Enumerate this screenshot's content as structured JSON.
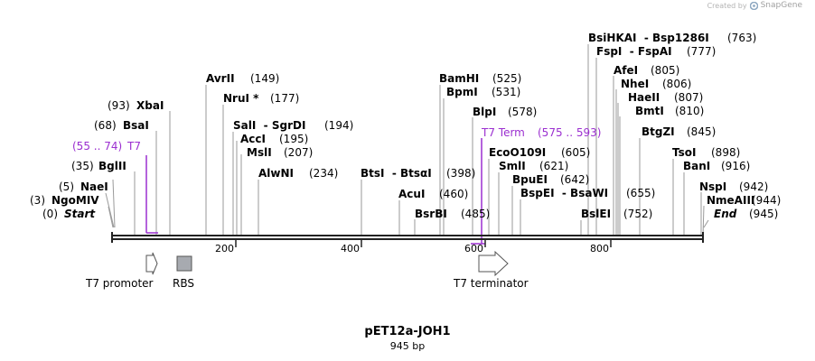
{
  "credit": {
    "prefix": "Created by",
    "brand": "SnapGene"
  },
  "plasmid": {
    "name": "pET12a-JOH1",
    "size": "945 bp"
  },
  "axis": {
    "ticks": [
      "200",
      "400",
      "600",
      "800"
    ]
  },
  "colors": {
    "feature_purple": "#9b2fd0",
    "rbs_fill": "#a7aab0",
    "backbone": "#222222"
  },
  "features": [
    {
      "name": "T7 promoter",
      "icon": "arrow-right-icon"
    },
    {
      "name": "RBS",
      "icon": "rbs-box-icon"
    },
    {
      "name": "T7 terminator",
      "icon": "arrow-right-icon"
    }
  ],
  "sites": [
    {
      "id": "start",
      "pre": "(0)",
      "name": "Start"
    },
    {
      "id": "ngomiv",
      "pre": "(3)",
      "name": "NgoMIV"
    },
    {
      "id": "naei",
      "pre": "(5)",
      "name": "NaeI"
    },
    {
      "id": "bgli",
      "pre": "(35)",
      "name": "BglII"
    },
    {
      "id": "t7",
      "pre": "(55 .. 74)",
      "name": "T7"
    },
    {
      "id": "bsai",
      "pre": "(68)",
      "name": "BsaI"
    },
    {
      "id": "xbai",
      "pre": "(93)",
      "name": "XbaI"
    },
    {
      "id": "avrii",
      "name": "AvrII",
      "post": "(149)"
    },
    {
      "id": "nrui",
      "name": "NruI *",
      "post": "(177)"
    },
    {
      "id": "sali",
      "name": "SalI  - SgrDI",
      "post": "(194)"
    },
    {
      "id": "acci",
      "name": "AccI",
      "post": "(195)"
    },
    {
      "id": "msli",
      "name": "MslI",
      "post": "(207)"
    },
    {
      "id": "alwni",
      "name": "AlwNI",
      "post": "(234)"
    },
    {
      "id": "btsi",
      "name": "BtsI  - BtsαI",
      "post": "(398)"
    },
    {
      "id": "acui",
      "name": "AcuI",
      "post": "(460)"
    },
    {
      "id": "bsrbi",
      "name": "BsrBI",
      "post": "(485)"
    },
    {
      "id": "bamhi",
      "name": "BamHI",
      "post": "(525)"
    },
    {
      "id": "bpmi",
      "name": "BpmI",
      "post": "(531)"
    },
    {
      "id": "blpi",
      "name": "BlpI",
      "post": "(578)"
    },
    {
      "id": "t7term",
      "name": "T7 Term",
      "post": "(575 .. 593)"
    },
    {
      "id": "eco0109i",
      "name": "EcoO109I",
      "post": "(605)"
    },
    {
      "id": "smli",
      "name": "SmlI",
      "post": "(621)"
    },
    {
      "id": "bpuei",
      "name": "BpuEI",
      "post": "(642)"
    },
    {
      "id": "bspei",
      "name": "BspEI  - BsaWI",
      "post": "(655)"
    },
    {
      "id": "bslei",
      "name": "BslEI",
      "post": "(752)"
    },
    {
      "id": "bsihkai",
      "name": "BsiHKAI  - Bsp1286I",
      "post": "(763)"
    },
    {
      "id": "fspi",
      "name": "FspI  - FspAI",
      "post": "(777)"
    },
    {
      "id": "afei",
      "name": "AfeI",
      "post": "(805)"
    },
    {
      "id": "nhei",
      "name": "NheI",
      "post": "(806)"
    },
    {
      "id": "haeii",
      "name": "HaeII",
      "post": "(807)"
    },
    {
      "id": "bmti",
      "name": "BmtI",
      "post": "(810)"
    },
    {
      "id": "btgzi",
      "name": "BtgZI",
      "post": "(845)"
    },
    {
      "id": "tsoi",
      "name": "TsoI",
      "post": "(898)"
    },
    {
      "id": "bani",
      "name": "BanI",
      "post": "(916)"
    },
    {
      "id": "nspi",
      "name": "NspI",
      "post": "(942)"
    },
    {
      "id": "nmeaiii",
      "name": "NmeAIII",
      "post": "(944)"
    },
    {
      "id": "end",
      "name": "End",
      "post": "(945)"
    }
  ]
}
